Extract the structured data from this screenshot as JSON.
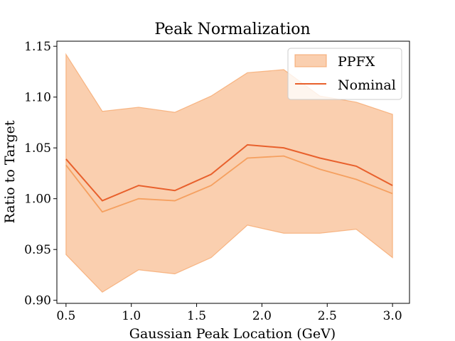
{
  "chart_data": {
    "type": "line",
    "title": "Peak Normalization",
    "xlabel": "Gaussian Peak Location (GeV)",
    "ylabel": "Ratio to Target",
    "xlim": [
      0.43,
      3.13
    ],
    "ylim": [
      0.897,
      1.155
    ],
    "xticks": [
      0.5,
      1.0,
      1.5,
      2.0,
      2.5,
      3.0
    ],
    "xtick_labels": [
      "0.5",
      "1.0",
      "1.5",
      "2.0",
      "2.5",
      "3.0"
    ],
    "yticks": [
      0.9,
      0.95,
      1.0,
      1.05,
      1.1,
      1.15
    ],
    "ytick_labels": [
      "0.90",
      "0.95",
      "1.00",
      "1.05",
      "1.10",
      "1.15"
    ],
    "grid": false,
    "legend_position": "top-right",
    "x": [
      0.5,
      0.778,
      1.056,
      1.333,
      1.611,
      1.889,
      2.167,
      2.444,
      2.722,
      3.0
    ],
    "series": [
      {
        "name": "PPFX",
        "kind": "band",
        "color": "#f5a060",
        "upper": [
          1.142,
          1.086,
          1.09,
          1.085,
          1.101,
          1.124,
          1.127,
          1.101,
          1.095,
          1.083
        ],
        "lower": [
          0.945,
          0.908,
          0.93,
          0.926,
          0.942,
          0.974,
          0.966,
          0.966,
          0.97,
          0.942
        ],
        "central": [
          1.033,
          0.987,
          1.0,
          0.998,
          1.013,
          1.04,
          1.042,
          1.029,
          1.019,
          1.005
        ]
      },
      {
        "name": "Nominal",
        "kind": "line",
        "color": "#e8602c",
        "values": [
          1.039,
          0.998,
          1.013,
          1.008,
          1.024,
          1.053,
          1.05,
          1.04,
          1.032,
          1.013
        ]
      }
    ]
  }
}
